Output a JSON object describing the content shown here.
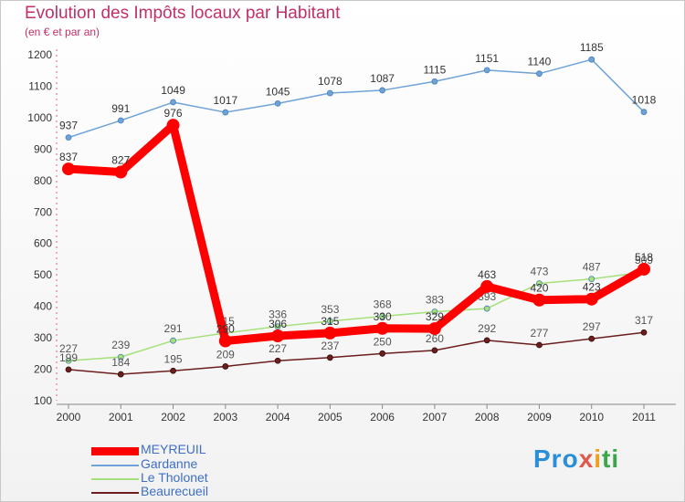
{
  "title": "Evolution des Impôts locaux par Habitant",
  "subtitle": "(en € et par an)",
  "logo": {
    "parts": [
      "Pro",
      "x",
      "i",
      "ti"
    ]
  },
  "chart_data": {
    "type": "line",
    "x": [
      "2000",
      "2001",
      "2002",
      "2003",
      "2004",
      "2005",
      "2006",
      "2007",
      "2008",
      "2009",
      "2010",
      "2011"
    ],
    "yticks": [
      100,
      200,
      300,
      400,
      500,
      600,
      700,
      800,
      900,
      1000,
      1100,
      1200
    ],
    "ylim": [
      100,
      1200
    ],
    "grid": false,
    "legend_position": "bottom-left",
    "series": [
      {
        "name": "MEYREUIL",
        "color": "#ff0000",
        "values": [
          837,
          827,
          976,
          290,
          306,
          315,
          330,
          329,
          463,
          420,
          423,
          518
        ]
      },
      {
        "name": "Gardanne",
        "color": "#6fa3d8",
        "values": [
          937,
          991,
          1049,
          1017,
          1045,
          1078,
          1087,
          1115,
          1151,
          1140,
          1185,
          1018
        ]
      },
      {
        "name": "Le Tholonet",
        "color": "#a5e07a",
        "values": [
          227,
          239,
          291,
          315,
          336,
          353,
          368,
          383,
          393,
          473,
          487,
          509
        ]
      },
      {
        "name": "Beaurecueil",
        "color": "#6b1e1e",
        "values": [
          199,
          184,
          195,
          209,
          227,
          237,
          250,
          260,
          292,
          277,
          297,
          317
        ]
      }
    ]
  }
}
